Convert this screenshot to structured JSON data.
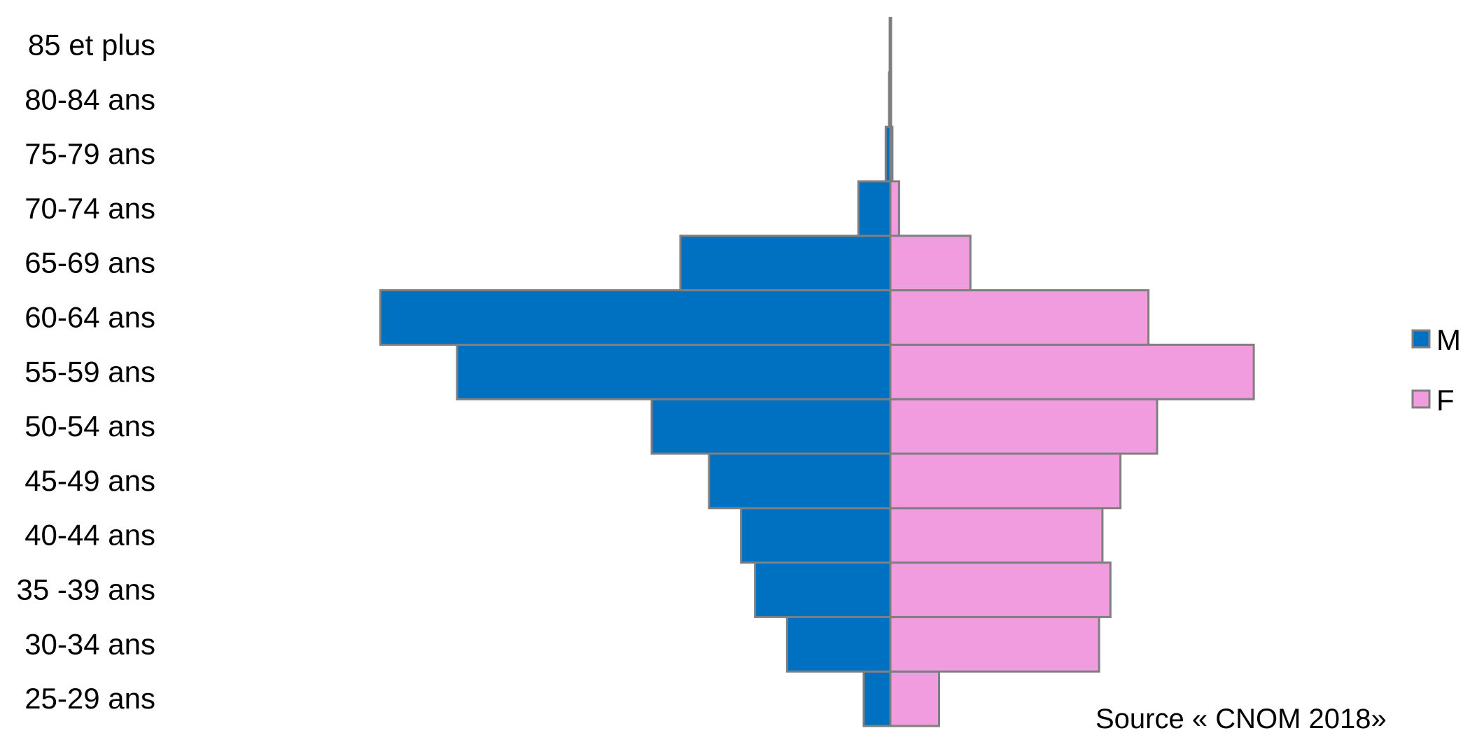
{
  "chart_data": {
    "type": "bar",
    "orientation": "horizontal-pyramid",
    "categories": [
      "25-29 ans",
      "30-34 ans",
      "35 -39 ans",
      "40-44 ans",
      "45-49 ans",
      "50-54 ans",
      "55-59 ans",
      "60-64 ans",
      "65-69 ans",
      "70-74 ans",
      "75-79 ans",
      "80-84 ans",
      "85 et plus"
    ],
    "series": [
      {
        "name": "M",
        "color": "#0070C0",
        "values": [
          40,
          155,
          203,
          224,
          272,
          358,
          650,
          765,
          315,
          48,
          7,
          2,
          1
        ]
      },
      {
        "name": "F",
        "color": "#F09CDE",
        "values": [
          73,
          313,
          330,
          318,
          345,
          400,
          545,
          387,
          120,
          13,
          3,
          1,
          1
        ]
      }
    ],
    "xlim": [
      -800,
      800
    ],
    "axis_visible": false,
    "grid": false,
    "legend_position": "right",
    "bar_outline_color": "#7F7F7F",
    "source": "Source « CNOM 2018»"
  }
}
